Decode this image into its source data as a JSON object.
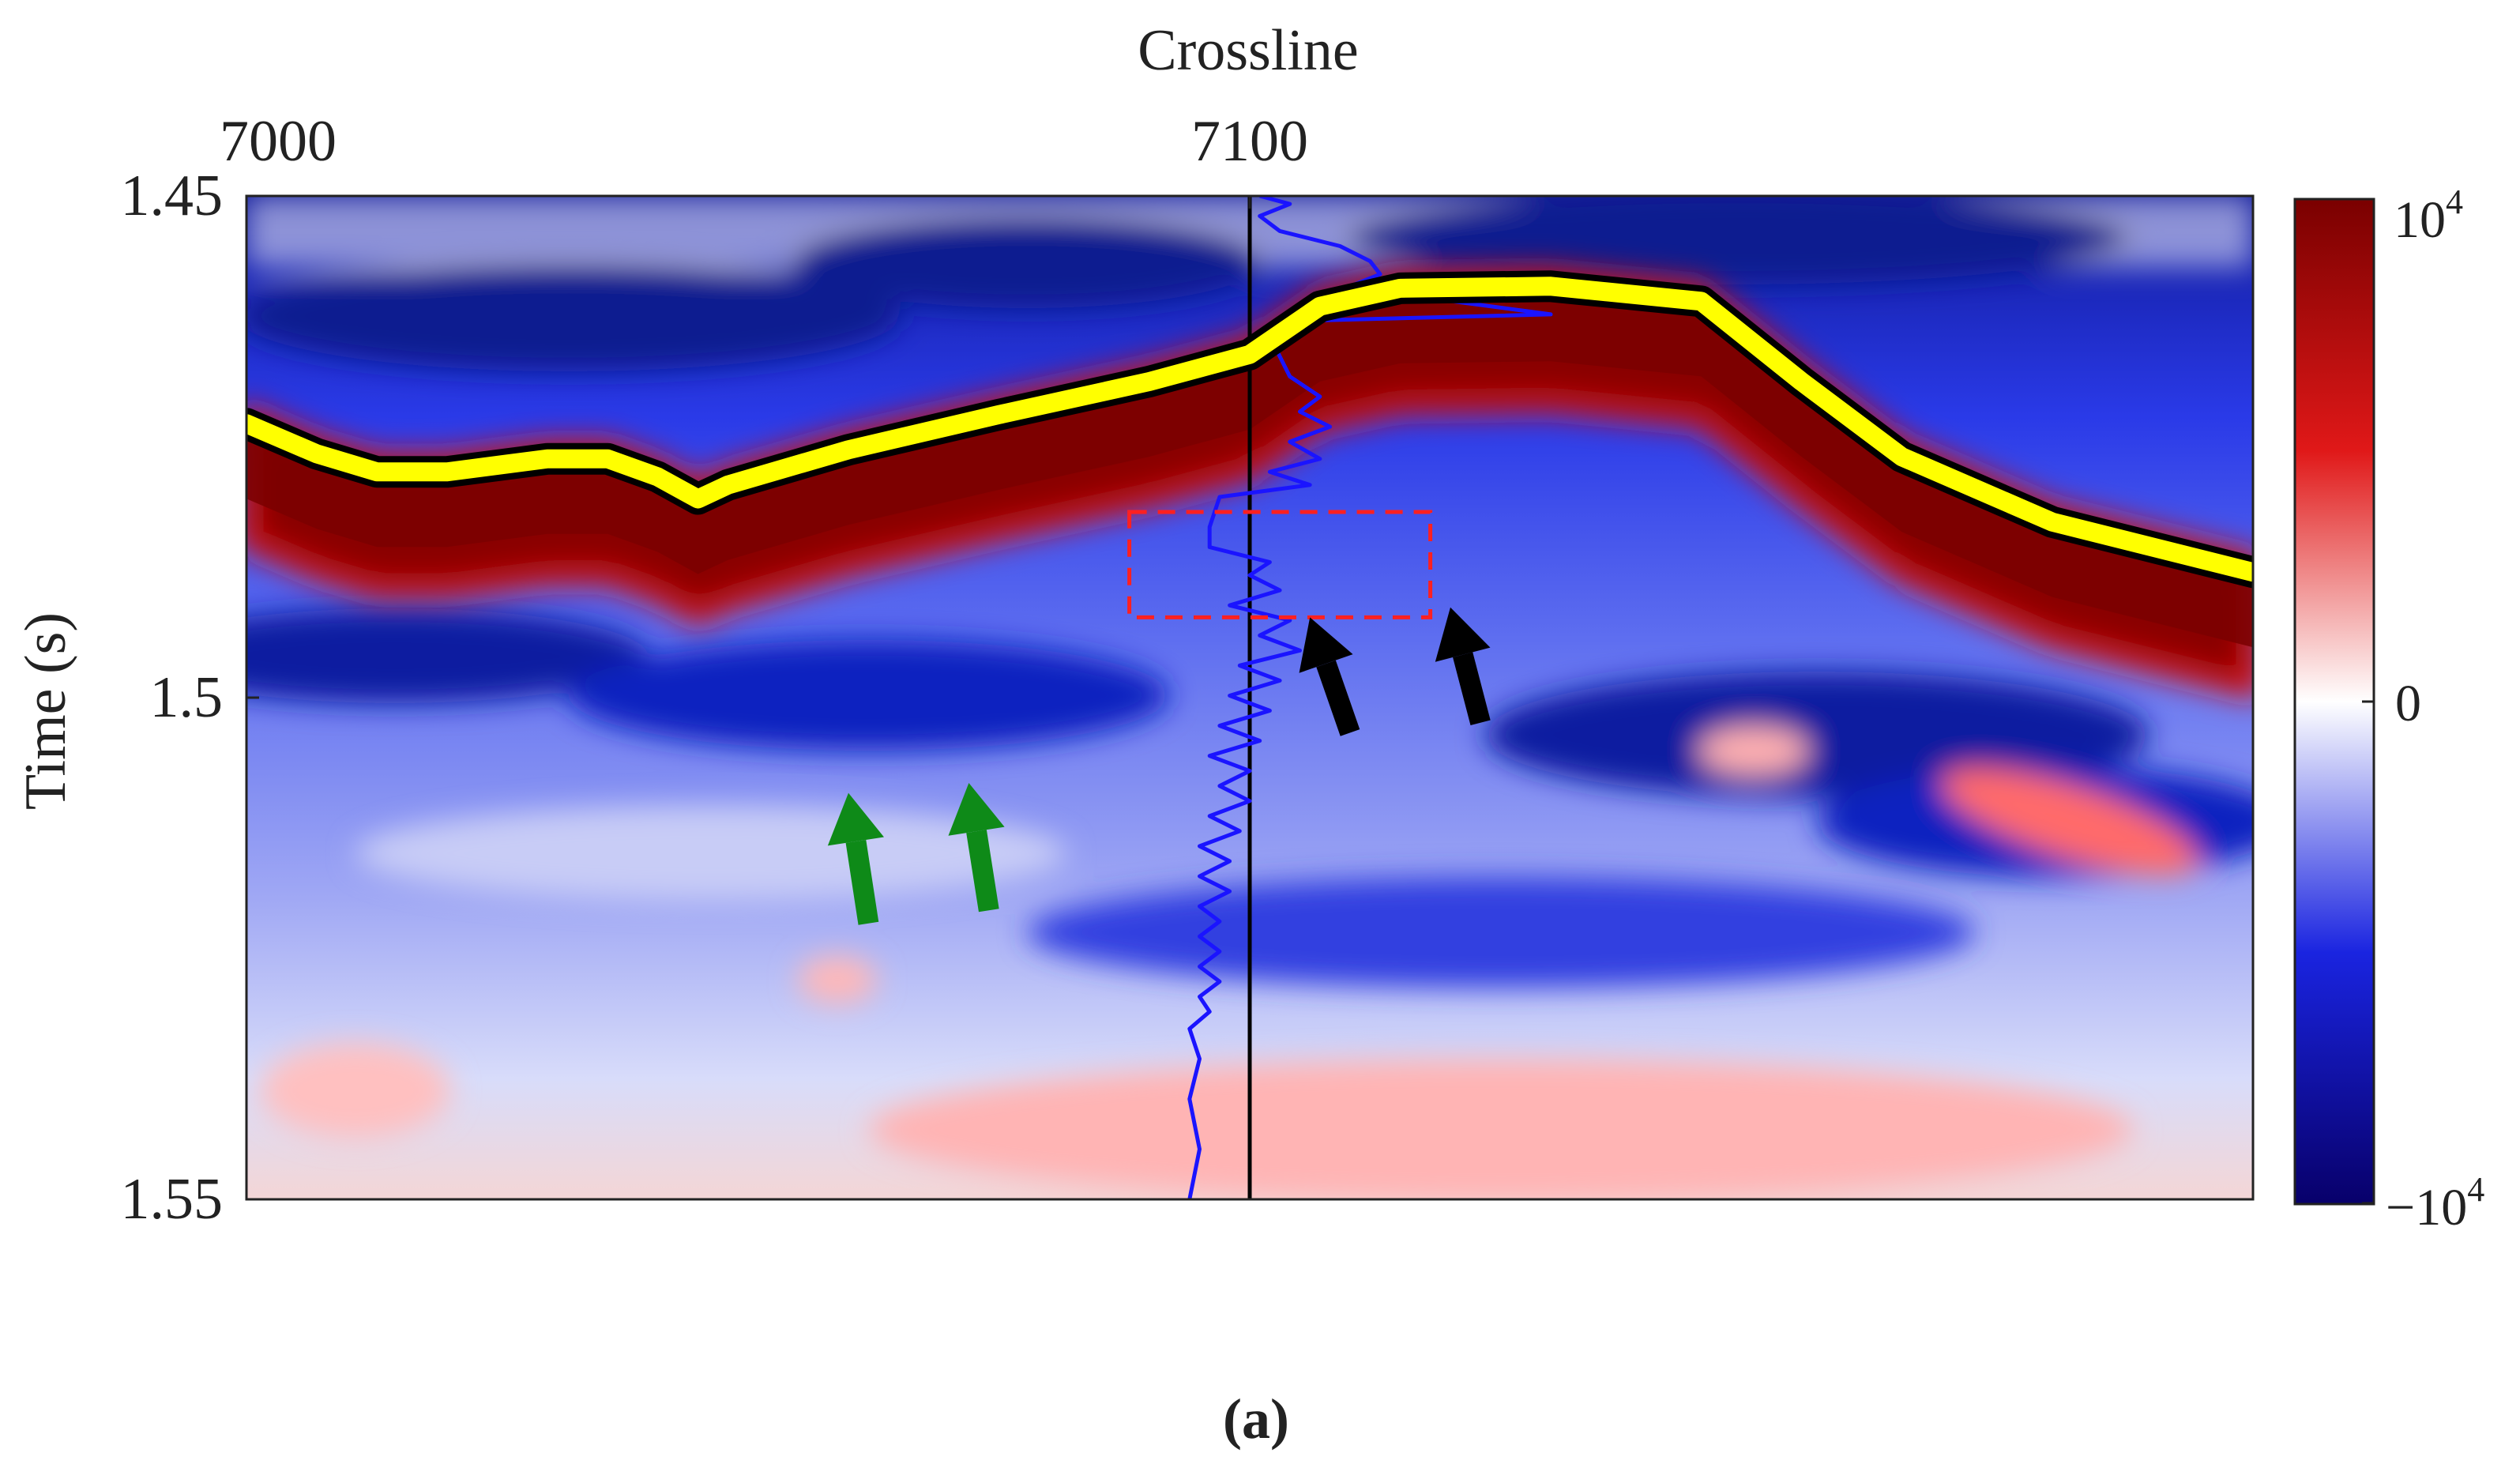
{
  "chart_data": {
    "type": "heatmap",
    "title": "",
    "xlabel": "Crossline",
    "ylabel": "Time (s)",
    "xlim": [
      7000,
      7200
    ],
    "ylim": [
      1.55,
      1.45
    ],
    "x_ticks": [
      7000,
      7100
    ],
    "x_tick_labels": [
      "7000",
      "7100"
    ],
    "y_ticks": [
      1.45,
      1.5,
      1.55
    ],
    "y_tick_labels": [
      "1.45",
      "1.5",
      "1.55"
    ],
    "x_axis_position": "top",
    "grid": false,
    "colorbar": {
      "position": "right",
      "colormap": [
        "#08006a",
        "#1a24e0",
        "#ffffff",
        "#e01818",
        "#7a0000"
      ],
      "range": [
        -10000,
        10000
      ],
      "tick_base_top": "10",
      "tick_exp_top": "4",
      "tick_mid": "0",
      "tick_base_bottom": "−10",
      "tick_exp_bottom": "4"
    },
    "horizon": {
      "color": "#ffff00",
      "outline": "#000000",
      "points": [
        [
          7000,
          1.4727
        ],
        [
          7007,
          1.4757
        ],
        [
          7013,
          1.4775
        ],
        [
          7020,
          1.4775
        ],
        [
          7030,
          1.4762
        ],
        [
          7036,
          1.4762
        ],
        [
          7041,
          1.478
        ],
        [
          7045,
          1.4802
        ],
        [
          7048,
          1.4788
        ],
        [
          7060,
          1.4753
        ],
        [
          7075,
          1.4718
        ],
        [
          7090,
          1.4685
        ],
        [
          7100,
          1.4658
        ],
        [
          7107,
          1.461
        ],
        [
          7115,
          1.4592
        ],
        [
          7130,
          1.459
        ],
        [
          7145,
          1.4605
        ],
        [
          7155,
          1.4685
        ],
        [
          7165,
          1.476
        ],
        [
          7180,
          1.4825
        ],
        [
          7200,
          1.4875
        ]
      ]
    },
    "well_line": {
      "x": 7100,
      "color": "#000000"
    },
    "well_log": {
      "color": "#1a14ff",
      "points": [
        [
          7101,
          1.45
        ],
        [
          7104,
          1.4508
        ],
        [
          7101,
          1.452
        ],
        [
          7103,
          1.4535
        ],
        [
          7109,
          1.455
        ],
        [
          7112,
          1.4565
        ],
        [
          7113,
          1.4578
        ],
        [
          7110,
          1.459
        ],
        [
          7115,
          1.4598
        ],
        [
          7130,
          1.4618
        ],
        [
          7103,
          1.4625
        ],
        [
          7102,
          1.464
        ],
        [
          7103,
          1.466
        ],
        [
          7104,
          1.468
        ],
        [
          7107,
          1.47
        ],
        [
          7105,
          1.4715
        ],
        [
          7108,
          1.473
        ],
        [
          7104,
          1.4745
        ],
        [
          7107,
          1.4762
        ],
        [
          7102,
          1.4775
        ],
        [
          7106,
          1.4788
        ],
        [
          7097,
          1.48
        ],
        [
          7096,
          1.483
        ],
        [
          7096,
          1.485
        ],
        [
          7102,
          1.4865
        ],
        [
          7100,
          1.4878
        ],
        [
          7103,
          1.4893
        ],
        [
          7098,
          1.4908
        ],
        [
          7104,
          1.4923
        ],
        [
          7101,
          1.4938
        ],
        [
          7105,
          1.4953
        ],
        [
          7099,
          1.4968
        ],
        [
          7103,
          1.4983
        ],
        [
          7098,
          1.4998
        ],
        [
          7102,
          1.5013
        ],
        [
          7097,
          1.5028
        ],
        [
          7101,
          1.5043
        ],
        [
          7096,
          1.5058
        ],
        [
          7100,
          1.5073
        ],
        [
          7097,
          1.5088
        ],
        [
          7100,
          1.5103
        ],
        [
          7096,
          1.5118
        ],
        [
          7099,
          1.5133
        ],
        [
          7095,
          1.5148
        ],
        [
          7098,
          1.5163
        ],
        [
          7095,
          1.5178
        ],
        [
          7098,
          1.5193
        ],
        [
          7095,
          1.5208
        ],
        [
          7097,
          1.5223
        ],
        [
          7095,
          1.5238
        ],
        [
          7097,
          1.5253
        ],
        [
          7095,
          1.5268
        ],
        [
          7097,
          1.5283
        ],
        [
          7095,
          1.5298
        ],
        [
          7096,
          1.5313
        ],
        [
          7094,
          1.533
        ],
        [
          7095,
          1.536
        ],
        [
          7094,
          1.54
        ],
        [
          7095,
          1.545
        ],
        [
          7094,
          1.55
        ]
      ]
    },
    "annotations": {
      "box": {
        "x": [
          7088,
          7118
        ],
        "y": [
          1.4815,
          1.492
        ],
        "color": "#ff2020",
        "style": "dashed"
      },
      "black_arrows": [
        {
          "tail": [
            7110,
            1.5035
          ],
          "head": [
            7106,
            1.492
          ]
        },
        {
          "tail": [
            7123,
            1.5025
          ],
          "head": [
            7120,
            1.491
          ]
        }
      ],
      "green_arrows": [
        {
          "tail": [
            7062,
            1.5225
          ],
          "head": [
            7060,
            1.5095
          ]
        },
        {
          "tail": [
            7074,
            1.5212
          ],
          "head": [
            7072,
            1.5085
          ]
        }
      ]
    },
    "caption": "(a)"
  }
}
